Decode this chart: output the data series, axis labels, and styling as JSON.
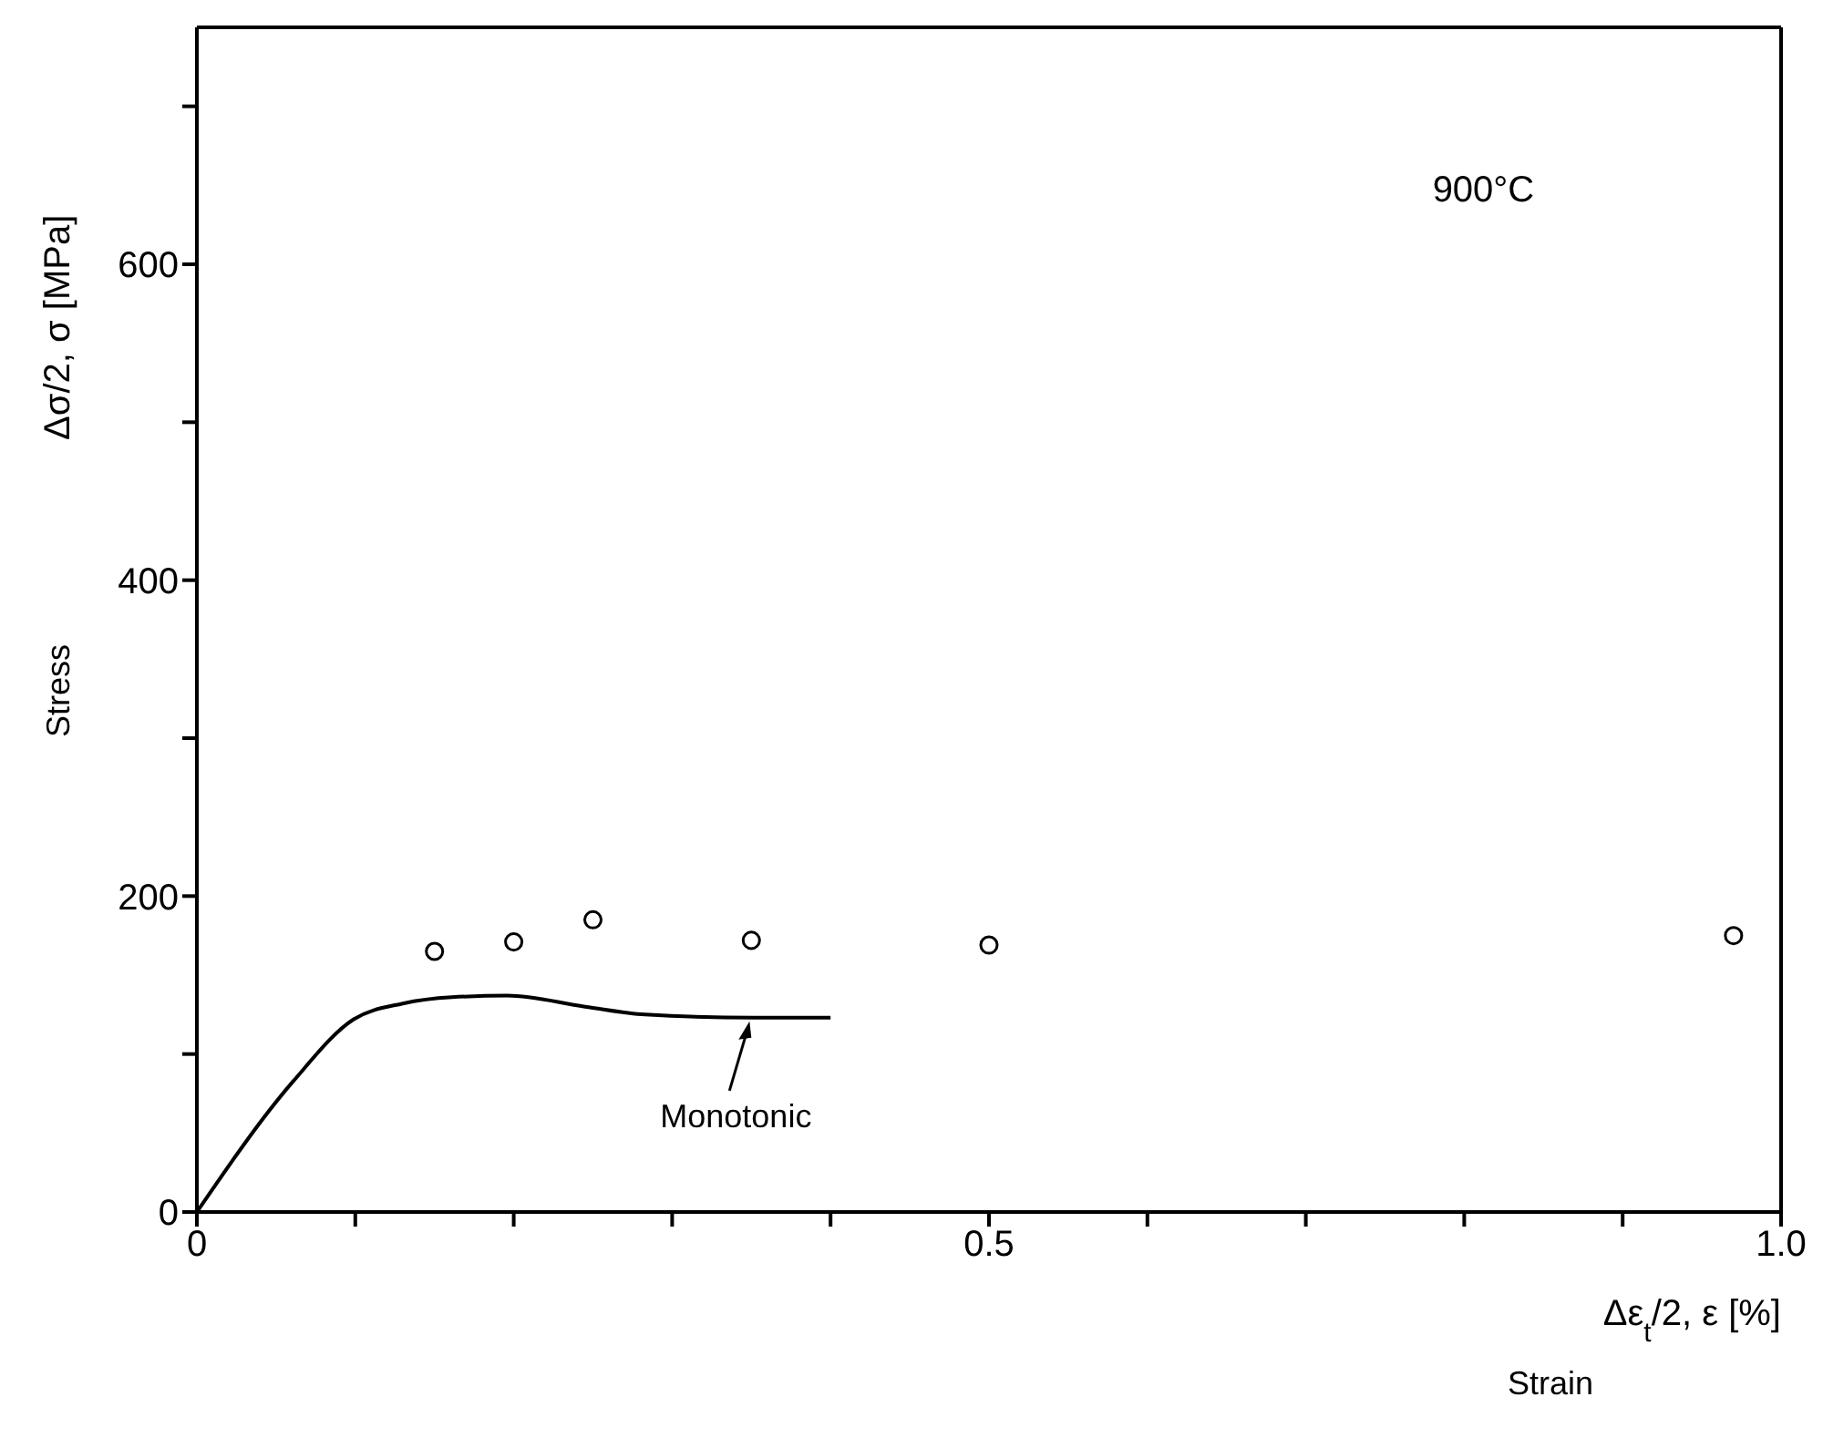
{
  "chart_data": {
    "type": "scatter",
    "xlabel": "Δε$_{t}$/2, ε [%]",
    "ylabel": "Δσ/2, σ [MPa]",
    "annotations": [
      "900°C",
      "Stress",
      "Strain",
      {
        "text": "Monotonic",
        "x": 0.35,
        "y": 123
      }
    ],
    "xlim": [
      0,
      1.0
    ],
    "xticks": [
      0,
      {
        "value": 0.1,
        "label": null
      },
      {
        "value": 0.2,
        "label": null
      },
      {
        "value": 0.3,
        "label": null
      },
      {
        "value": 0.4,
        "label": null
      },
      0.5,
      {
        "value": 0.6,
        "label": null
      },
      {
        "value": 0.7,
        "label": null
      },
      {
        "value": 0.8,
        "label": null
      },
      {
        "value": 0.9,
        "label": null
      },
      {
        "value": 1.0,
        "label": "1.0"
      }
    ],
    "ylim": [
      0,
      750
    ],
    "yticks": [
      0,
      {
        "value": 100,
        "label": null
      },
      200,
      {
        "value": 300,
        "label": null
      },
      400,
      {
        "value": 500,
        "label": null
      },
      600,
      {
        "value": 700,
        "label": null
      }
    ],
    "grid": false,
    "legend": false,
    "series": [
      {
        "color": "#000000",
        "marker": "circle",
        "x": [
          0.15,
          0.2,
          0.25,
          0.35,
          0.5,
          0.97
        ],
        "values": [
          165,
          171,
          185,
          172,
          169,
          175
        ]
      },
      {
        "type": "line",
        "color": "#000000",
        "marker": "none",
        "line_style": "solid",
        "x": [
          0,
          0.061,
          0.099,
          0.13,
          0.161,
          0.196,
          0.245,
          0.283,
          0.352,
          0.4
        ],
        "values": [
          0,
          83,
          122,
          132,
          136,
          137,
          130,
          125,
          123,
          123
        ]
      }
    ]
  }
}
